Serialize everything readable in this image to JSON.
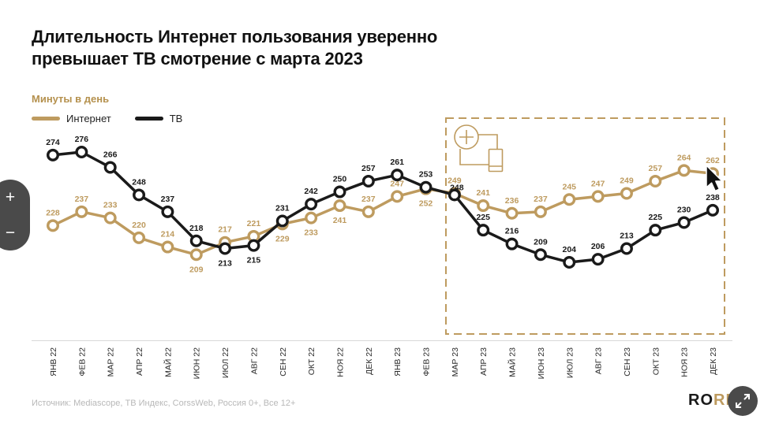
{
  "title": {
    "line1": "Длительность Интернет пользования уверенно",
    "line2": "превышает ТВ смотрение с марта 2023"
  },
  "subtitle": "Минуты в день",
  "legend": {
    "items": [
      {
        "label": "Интернет",
        "color": "#be9b5f"
      },
      {
        "label": "ТВ",
        "color": "#1a1a1a"
      }
    ]
  },
  "zoom_controls": {
    "plus": "+",
    "minus": "−"
  },
  "footer": {
    "source": "Источник: Mediascope, ТВ Индекс, CorssWeb, Россия 0+, Все 12+"
  },
  "logo": {
    "black": "RO",
    "gold": "RE"
  },
  "chart_data": {
    "type": "line",
    "title": "Длительность Интернет пользования уверенно превышает ТВ смотрение с марта 2023",
    "ylabel": "Минуты в день",
    "xlabel": "",
    "categories": [
      "ЯНВ 22",
      "ФЕВ 22",
      "МАР 22",
      "АПР 22",
      "МАЙ 22",
      "ИЮН 22",
      "ИЮЛ 22",
      "АВГ 22",
      "СЕН 22",
      "ОКТ 22",
      "НОЯ 22",
      "ДЕК 22",
      "ЯНВ 23",
      "ФЕВ 23",
      "МАР 23",
      "АПР 23",
      "МАЙ 23",
      "ИЮН 23",
      "ИЮЛ 23",
      "АВГ 23",
      "СЕН 23",
      "ОКТ 23",
      "НОЯ 23",
      "ДЕК 23"
    ],
    "series": [
      {
        "name": "Интернет",
        "color": "#be9b5f",
        "values": [
          228,
          237,
          233,
          220,
          214,
          209,
          217,
          221,
          229,
          233,
          241,
          237,
          247,
          252,
          249,
          241,
          236,
          237,
          245,
          247,
          249,
          257,
          264,
          262
        ]
      },
      {
        "name": "ТВ",
        "color": "#1a1a1a",
        "values": [
          274,
          276,
          266,
          248,
          237,
          218,
          213,
          215,
          231,
          242,
          250,
          257,
          261,
          253,
          248,
          225,
          216,
          209,
          204,
          206,
          213,
          225,
          230,
          238
        ]
      }
    ],
    "ylim": [
      195,
      285
    ],
    "grid": false,
    "legend_position": "top-left",
    "x_tick_rotation": -90,
    "point_labels": true,
    "labels_below_indices": {
      "Интернет": [
        5,
        8,
        9,
        10,
        13
      ],
      "ТВ": [
        6,
        7
      ]
    },
    "highlight_box": {
      "from": "МАР 23",
      "to": "ДЕК 23"
    }
  }
}
